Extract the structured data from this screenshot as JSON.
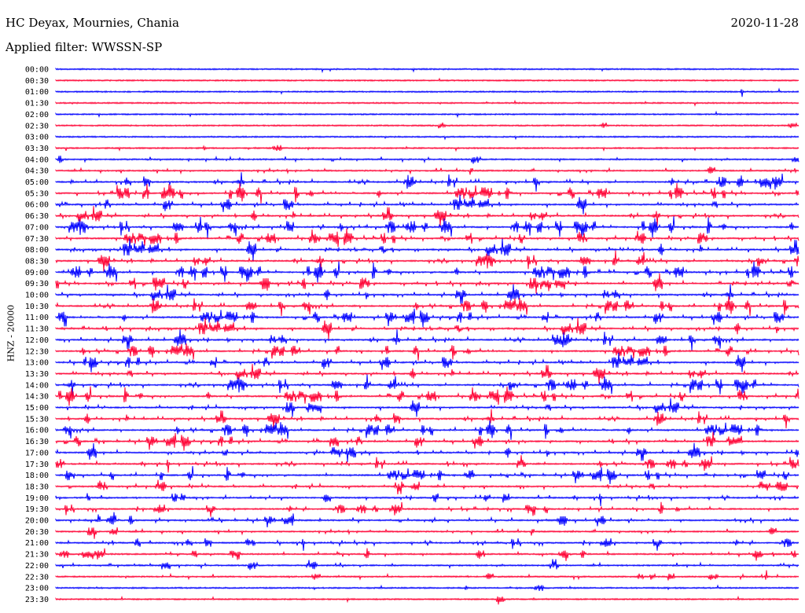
{
  "header": {
    "station": "HC Deyax, Mournies, Chania",
    "date": "2020-11-28",
    "filter": "Applied filter: WWSSN-SP"
  },
  "chart_data": {
    "type": "line",
    "title": "HC Deyax, Mournies, Chania",
    "subtitle": "Applied filter: WWSSN-SP",
    "ylabel": "HNZ - 20000",
    "xlabel": "",
    "grid": false,
    "colors": {
      "even": "#0000ff",
      "odd": "#ff0033"
    },
    "rows": [
      "00:00",
      "00:30",
      "01:00",
      "01:30",
      "02:00",
      "02:30",
      "03:00",
      "03:30",
      "04:00",
      "04:30",
      "05:00",
      "05:30",
      "06:00",
      "06:30",
      "07:00",
      "07:30",
      "08:00",
      "08:30",
      "09:00",
      "09:30",
      "10:00",
      "10:30",
      "11:00",
      "11:30",
      "12:00",
      "12:30",
      "13:00",
      "13:30",
      "14:00",
      "14:30",
      "15:00",
      "15:30",
      "16:00",
      "16:30",
      "17:00",
      "17:30",
      "18:00",
      "18:30",
      "19:00",
      "19:30",
      "20:00",
      "20:30",
      "21:00",
      "21:30",
      "22:00",
      "22:30",
      "23:00",
      "23:30"
    ],
    "activity": [
      0.02,
      0.01,
      0.01,
      0.02,
      0.02,
      0.03,
      0.04,
      0.05,
      0.18,
      0.3,
      0.55,
      0.65,
      0.6,
      0.6,
      0.7,
      0.6,
      0.75,
      0.65,
      0.7,
      0.65,
      0.65,
      0.6,
      0.6,
      0.7,
      0.65,
      0.55,
      0.6,
      0.6,
      0.65,
      0.6,
      0.55,
      0.55,
      0.6,
      0.55,
      0.55,
      0.45,
      0.5,
      0.45,
      0.4,
      0.35,
      0.35,
      0.3,
      0.35,
      0.2,
      0.25,
      0.18,
      0.06,
      0.05
    ]
  }
}
